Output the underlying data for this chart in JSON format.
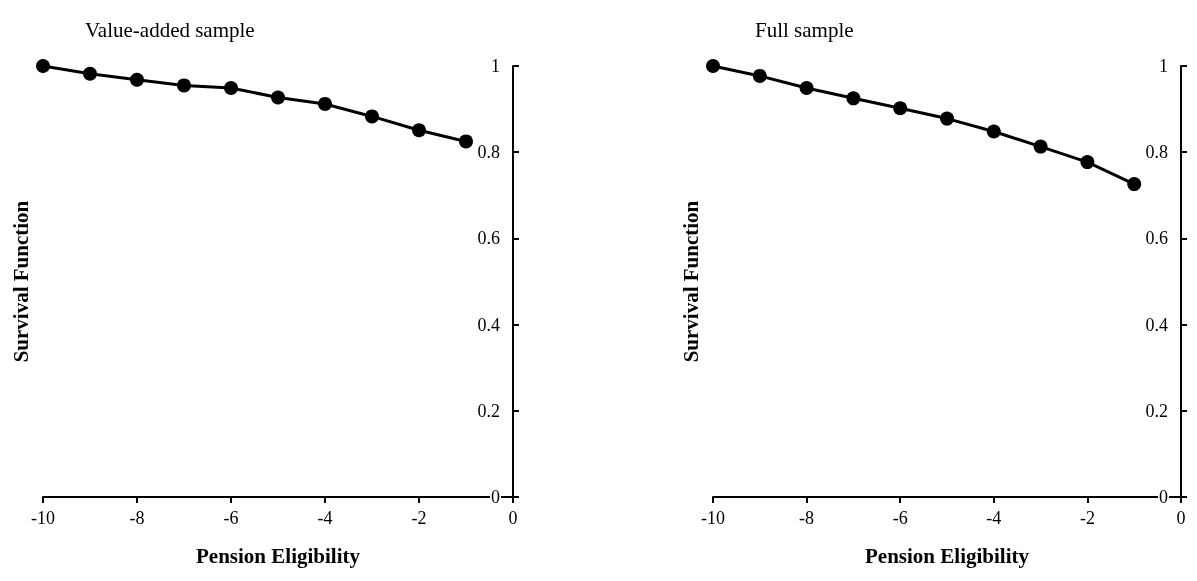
{
  "chart_data": [
    {
      "type": "line",
      "title": "Value-added sample",
      "xlabel": "Pension Eligibility",
      "ylabel": "Survival Function",
      "x": [
        -10,
        -9,
        -8,
        -7,
        -6,
        -5,
        -4,
        -3,
        -2,
        -1
      ],
      "series": [
        {
          "color": "#000000",
          "values": [
            1.0,
            0.982,
            0.968,
            0.955,
            0.949,
            0.927,
            0.912,
            0.883,
            0.851,
            0.825
          ]
        }
      ],
      "xlim": [
        -10,
        0
      ],
      "xticks": [
        -10,
        -8,
        -6,
        -4,
        -2,
        0
      ],
      "ylim": [
        0,
        1
      ],
      "yticks": [
        0,
        0.2,
        0.4,
        0.6,
        0.8,
        1
      ],
      "marker": "circle",
      "line_style": "solid"
    },
    {
      "type": "line",
      "title": "Full sample",
      "xlabel": "Pension Eligibility",
      "ylabel": "Survival Function",
      "x": [
        -10,
        -9,
        -8,
        -7,
        -6,
        -5,
        -4,
        -3,
        -2,
        -1
      ],
      "series": [
        {
          "color": "#000000",
          "values": [
            1.0,
            0.977,
            0.949,
            0.925,
            0.902,
            0.878,
            0.848,
            0.813,
            0.777,
            0.726
          ]
        }
      ],
      "xlim": [
        -10,
        0
      ],
      "xticks": [
        -10,
        -8,
        -6,
        -4,
        -2,
        0
      ],
      "ylim": [
        0,
        1
      ],
      "yticks": [
        0,
        0.2,
        0.4,
        0.6,
        0.8,
        1
      ],
      "marker": "circle",
      "line_style": "solid"
    }
  ]
}
